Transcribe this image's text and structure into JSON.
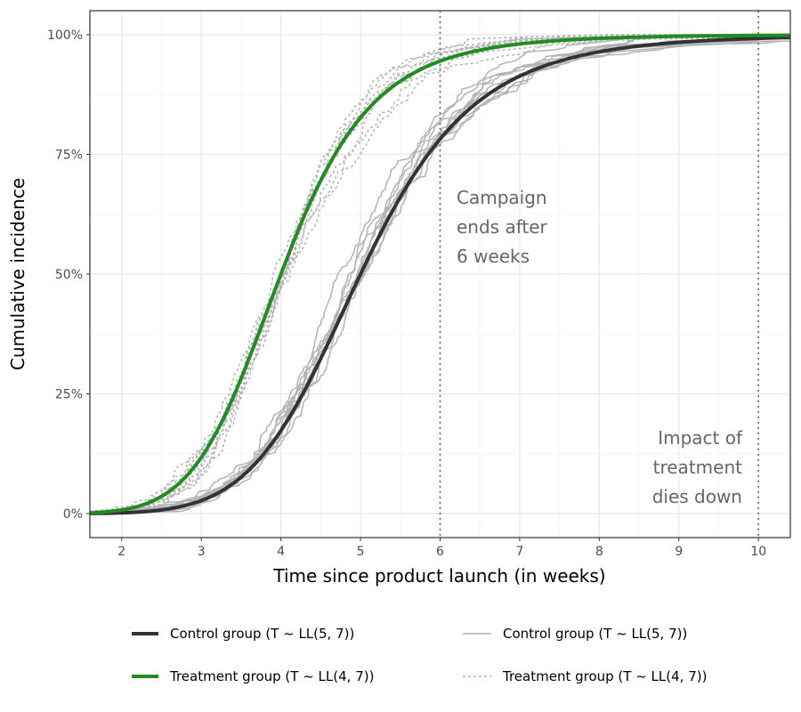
{
  "chart_data": {
    "type": "line",
    "xlabel": "Time since product launch (in weeks)",
    "ylabel": "Cumulative incidence",
    "xlim": [
      1.6,
      10.4
    ],
    "ylim": [
      -0.05,
      1.05
    ],
    "x_ticks": [
      2,
      3,
      4,
      5,
      6,
      7,
      8,
      9,
      10
    ],
    "y_ticks": [
      0,
      0.25,
      0.5,
      0.75,
      1.0
    ],
    "y_tick_labels": [
      "0%",
      "25%",
      "50%",
      "75%",
      "100%"
    ],
    "grid": true,
    "legend_position": "bottom",
    "vlines": [
      6,
      10
    ],
    "annotations": [
      {
        "lines": [
          "Campaign",
          "ends after",
          "6 weeks"
        ]
      },
      {
        "lines": [
          "Impact of",
          "treatment",
          "dies down"
        ]
      }
    ],
    "colors": {
      "control": "#333333",
      "treatment": "#228b22",
      "simulated": "#b3b3b3",
      "vline": "#666666",
      "grid_major": "#ebebeb",
      "grid_minor": "#f5f5f5",
      "border": "#333333"
    },
    "series": [
      {
        "name": "Control group (T ~ LL(5, 7))",
        "role": "theoretical",
        "x": [
          1.6,
          2,
          2.5,
          3,
          3.5,
          4,
          4.5,
          5,
          5.5,
          6,
          6.5,
          7,
          7.5,
          8,
          8.5,
          9,
          9.5,
          10,
          10.4
        ],
        "y": [
          0.0004,
          0.0016,
          0.0091,
          0.0272,
          0.0847,
          0.1733,
          0.3245,
          0.5,
          0.6612,
          0.7821,
          0.8598,
          0.9093,
          0.941,
          0.9608,
          0.9735,
          0.9818,
          0.9871,
          0.9922,
          0.9941
        ]
      },
      {
        "name": "Treatment group (T ~ LL(4, 7))",
        "role": "theoretical",
        "x": [
          1.6,
          2,
          2.5,
          3,
          3.5,
          4,
          4.5,
          5,
          5.5,
          6,
          6.5,
          7,
          7.5,
          8,
          8.5,
          9,
          9.5,
          10,
          10.4
        ],
        "y": [
          0.0016,
          0.0078,
          0.0357,
          0.1175,
          0.2811,
          0.5,
          0.6977,
          0.8265,
          0.9027,
          0.9448,
          0.9665,
          0.9797,
          0.9874,
          0.9922,
          0.9948,
          0.9967,
          0.9978,
          0.9984,
          0.9989
        ]
      },
      {
        "name": "Control group (T ~ LL(5, 7))",
        "role": "simulated",
        "style": "solid",
        "n_replicates": 10
      },
      {
        "name": "Treatment group (T ~ LL(4, 7))",
        "role": "simulated",
        "style": "dashed",
        "n_replicates": 10
      }
    ]
  }
}
